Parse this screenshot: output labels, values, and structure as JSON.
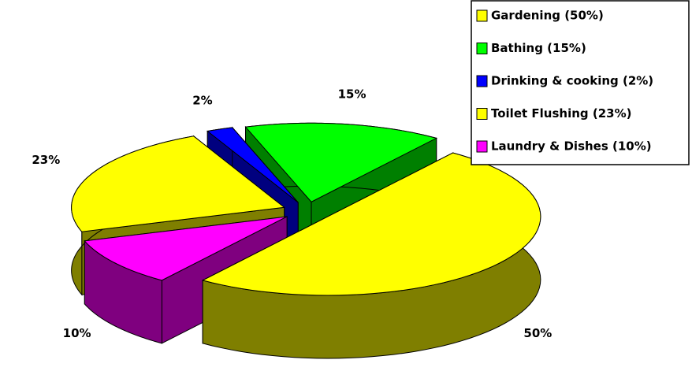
{
  "chart_data": {
    "type": "pie",
    "categories": [
      "Gardening (50%)",
      "Bathing (15%)",
      "Drinking & cooking (2%)",
      "Toilet Flushing (23%)",
      "Laundry & Dishes (10%)"
    ],
    "values": [
      50,
      15,
      2,
      23,
      10
    ],
    "value_labels": [
      "50%",
      "15%",
      "2%",
      "23%",
      "10%"
    ],
    "colors": [
      "#ffff00",
      "#00ff00",
      "#0000ff",
      "#ffff00",
      "#ff00ff"
    ],
    "legend": "top-right"
  }
}
